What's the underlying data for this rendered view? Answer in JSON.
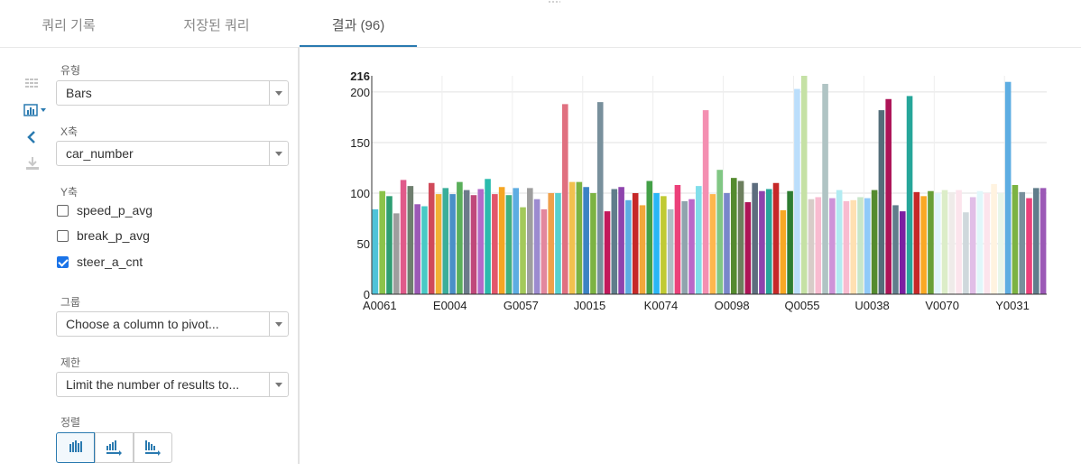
{
  "tabs": [
    {
      "label": "쿼리 기록"
    },
    {
      "label": "저장된 쿼리"
    },
    {
      "label": "결과 (96)"
    }
  ],
  "active_tab": 2,
  "icons": {
    "grid": "grid-icon",
    "chart": "bar-chart-icon",
    "collapse": "chevron-left-icon",
    "download": "download-icon"
  },
  "panel": {
    "type_label": "유형",
    "type_value": "Bars",
    "x_label": "X축",
    "x_value": "car_number",
    "y_label": "Y축",
    "y_options": [
      {
        "label": "speed_p_avg",
        "checked": false
      },
      {
        "label": "break_p_avg",
        "checked": false
      },
      {
        "label": "steer_a_cnt",
        "checked": true
      }
    ],
    "group_label": "그룹",
    "group_value": "Choose a column to pivot...",
    "limit_label": "제한",
    "limit_value": "Limit the number of results to...",
    "sort_label": "정렬"
  },
  "colors": {
    "accent": "#2a7ab0",
    "checkbox": "#1a73e8"
  },
  "chart_data": {
    "type": "bar",
    "ylim": [
      0,
      216
    ],
    "yticks": [
      0,
      50,
      100,
      150,
      200,
      216
    ],
    "xtick_labels": [
      "A0061",
      "E0004",
      "G0057",
      "J0015",
      "K0074",
      "O0098",
      "Q0055",
      "U0038",
      "V0070",
      "Y0031"
    ],
    "grid": true,
    "values": [
      84,
      102,
      97,
      80,
      113,
      107,
      89,
      87,
      110,
      99,
      105,
      99,
      111,
      103,
      98,
      104,
      114,
      99,
      106,
      98,
      105,
      86,
      105,
      94,
      84,
      100,
      100,
      188,
      111,
      111,
      106,
      100,
      190,
      82,
      104,
      106,
      93,
      100,
      88,
      112,
      100,
      97,
      84,
      108,
      92,
      94,
      107,
      182,
      99,
      123,
      100,
      115,
      112,
      91,
      110,
      102,
      104,
      110,
      83,
      102,
      203,
      216,
      94,
      96,
      208,
      95,
      103,
      92,
      93,
      96,
      95,
      103,
      182,
      193,
      88,
      82,
      196,
      101,
      97,
      102,
      100,
      103,
      101,
      103,
      81,
      96,
      102,
      100,
      109,
      100,
      210,
      108,
      101,
      95,
      105,
      105
    ],
    "colors": [
      "#4FC3D9",
      "#8BC34A",
      "#2E9E73",
      "#9E9E9E",
      "#E05A8A",
      "#6E7E6E",
      "#9B59B6",
      "#48C9C5",
      "#D04A5A",
      "#F2B134",
      "#3AAE9A",
      "#4A90C8",
      "#5AAF5A",
      "#6C7A8A",
      "#C0487A",
      "#B36AC9",
      "#2BBBAD",
      "#E3566A",
      "#F5A623",
      "#40B080",
      "#5DADE2",
      "#A3C95B",
      "#9E9E9E",
      "#9C8BD0",
      "#E3879E",
      "#F0A04B",
      "#58D0D0",
      "#E07080",
      "#F2C14E",
      "#7CB342",
      "#3B82C4",
      "#7CB342",
      "#78909C",
      "#C2185B",
      "#607D8B",
      "#8E44AD",
      "#5DADE2",
      "#C62828",
      "#F2A83B",
      "#43A047",
      "#29B6F6",
      "#C0CA33",
      "#B0BEC5",
      "#EC407A",
      "#90A4AE",
      "#BA68C8",
      "#80DEEA",
      "#F48FB1",
      "#FFB74D",
      "#81C784",
      "#7986CB",
      "#558B2F",
      "#6D7F5E",
      "#AD1457",
      "#5D6D7E",
      "#8E44AD",
      "#26A69A",
      "#C62828",
      "#F9A825",
      "#2E7D32",
      "#BBDEFB",
      "#C5E1A5",
      "#D7CCC8",
      "#F8BBD0",
      "#B0C4C4",
      "#CE93D8",
      "#B2EBF2",
      "#F8BBD0",
      "#FFE0B2",
      "#C8E6C9",
      "#90CAF9",
      "#558B2F",
      "#546E7A",
      "#AD1457",
      "#607D8B",
      "#7B1FA2",
      "#26A69A",
      "#C62828",
      "#F9A825",
      "#689F38",
      "#E1F5FE",
      "#DCEDC8",
      "#EFEBE9",
      "#FCE4EC",
      "#CFD8DC",
      "#E1BEE7",
      "#E0F7FA",
      "#FCE4EC",
      "#FFF3E0",
      "#E8F5E9",
      "#5DADE2",
      "#7CB342",
      "#78909C",
      "#EC407A",
      "#607D8B",
      "#9B59B6"
    ]
  }
}
